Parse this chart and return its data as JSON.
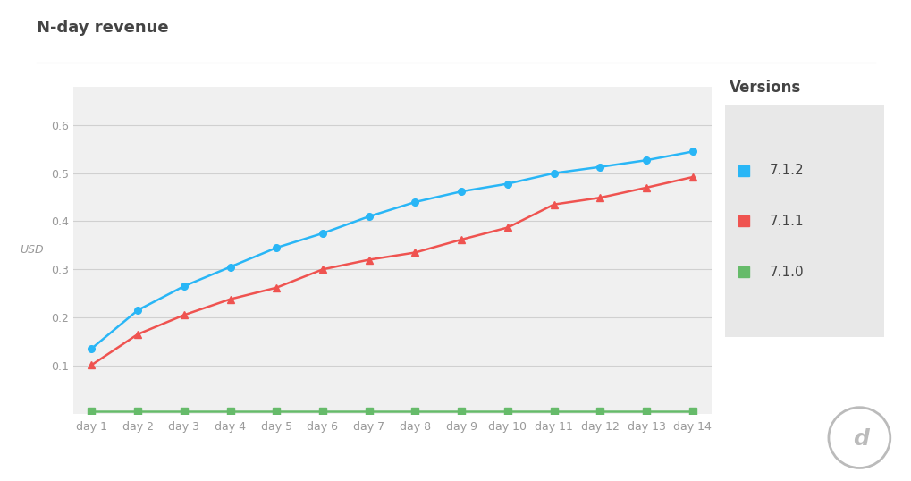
{
  "title": "N-day revenue",
  "ylabel": "USD",
  "legend_title": "Versions",
  "background_color": "#ffffff",
  "plot_bg_color": "#f0f0f0",
  "days": [
    "day 1",
    "day 2",
    "day 3",
    "day 4",
    "day 5",
    "day 6",
    "day 7",
    "day 8",
    "day 9",
    "day 10",
    "day 11",
    "day 12",
    "day 13",
    "day 14"
  ],
  "series": [
    {
      "label": "7.1.2",
      "color": "#29b6f6",
      "marker": "o",
      "values": [
        0.135,
        0.215,
        0.265,
        0.305,
        0.345,
        0.375,
        0.41,
        0.44,
        0.462,
        0.478,
        0.5,
        0.513,
        0.527,
        0.545
      ]
    },
    {
      "label": "7.1.1",
      "color": "#ef5350",
      "marker": "^",
      "values": [
        0.101,
        0.165,
        0.205,
        0.238,
        0.262,
        0.3,
        0.32,
        0.335,
        0.362,
        0.387,
        0.435,
        0.449,
        0.47,
        0.492
      ]
    },
    {
      "label": "7.1.0",
      "color": "#66bb6a",
      "marker": "s",
      "values": [
        0.005,
        0.005,
        0.005,
        0.005,
        0.005,
        0.005,
        0.005,
        0.005,
        0.005,
        0.005,
        0.005,
        0.005,
        0.005,
        0.005
      ]
    }
  ],
  "ylim": [
    0.0,
    0.68
  ],
  "yticks": [
    0.1,
    0.2,
    0.3,
    0.4,
    0.5,
    0.6
  ],
  "grid_color": "#d0d0d0",
  "title_color": "#444444",
  "tick_color": "#999999",
  "legend_bg": "#e8e8e8",
  "separator_color": "#cccccc"
}
